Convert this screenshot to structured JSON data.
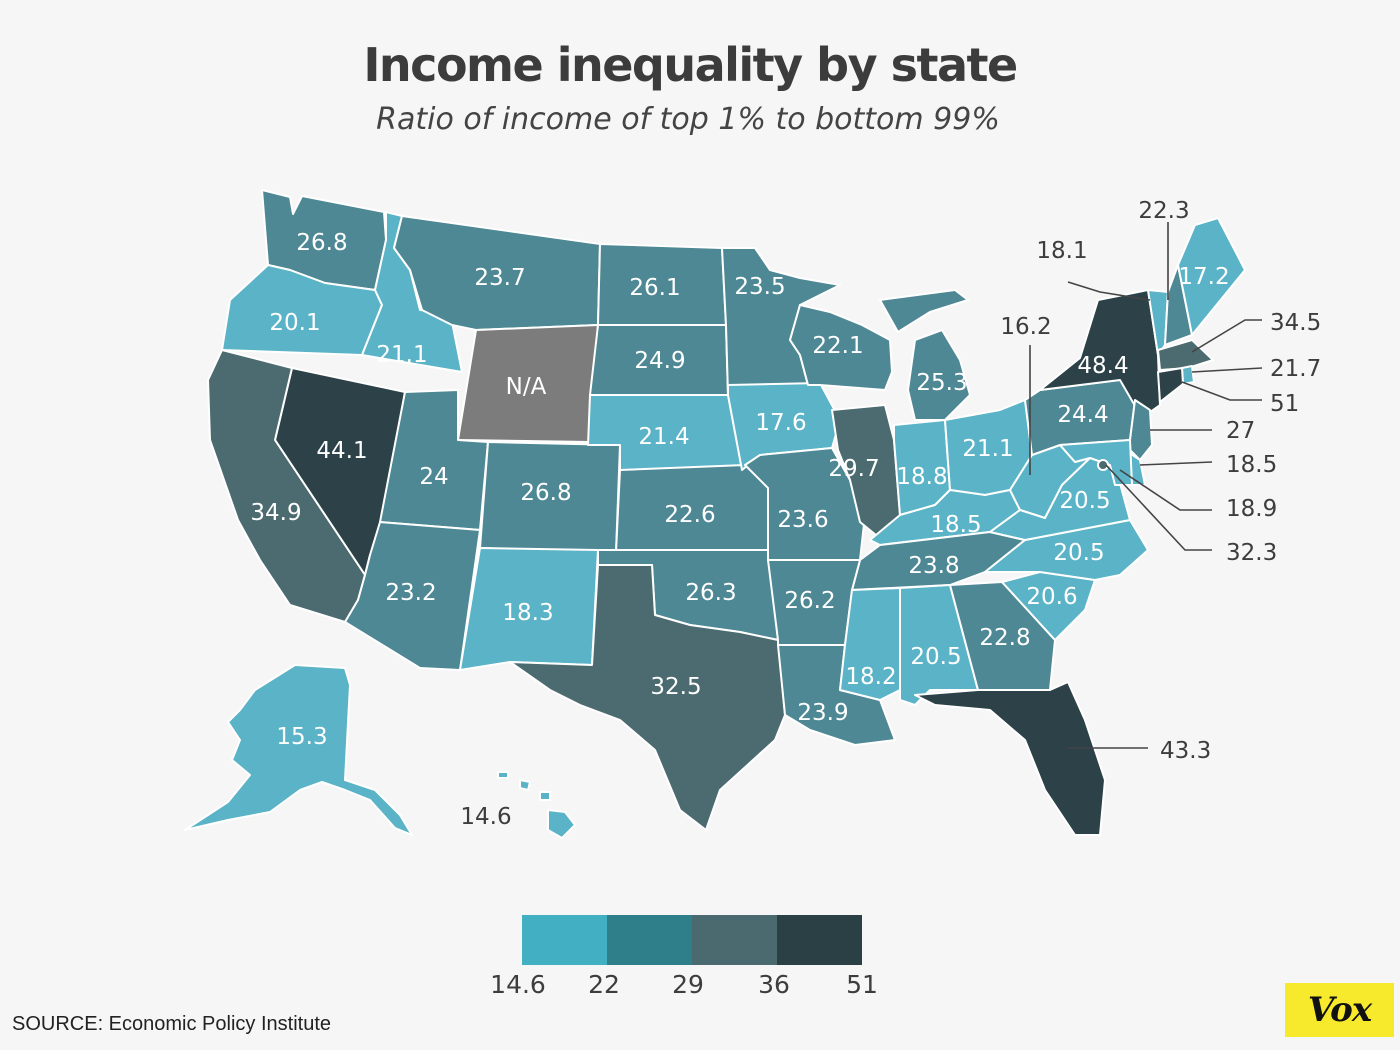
{
  "header": {
    "title": "Income inequality by state",
    "subtitle": "Ratio of income of top 1% to bottom 99%"
  },
  "colors": {
    "bin1": "#5ab3c6",
    "bin2": "#4e8894",
    "bin3": "#4b6b71",
    "bin4": "#2c4248",
    "na": "#7c7c7c",
    "legend1": "#42b0c2",
    "legend2": "#2f7f8a",
    "legend3": "#4a6a70",
    "legend4": "#2b4045"
  },
  "legend": {
    "ticks": [
      "14.6",
      "22",
      "29",
      "36",
      "51"
    ]
  },
  "states": [
    {
      "id": "WA",
      "label": "26.8"
    },
    {
      "id": "OR",
      "label": "20.1"
    },
    {
      "id": "ID",
      "label": "21.1"
    },
    {
      "id": "MT",
      "label": "23.7"
    },
    {
      "id": "WY",
      "label": "N/A"
    },
    {
      "id": "ND",
      "label": "26.1"
    },
    {
      "id": "SD",
      "label": "24.9"
    },
    {
      "id": "MN",
      "label": "23.5"
    },
    {
      "id": "WI",
      "label": "22.1"
    },
    {
      "id": "MI",
      "label": "25.3"
    },
    {
      "id": "NV",
      "label": "44.1"
    },
    {
      "id": "CA",
      "label": "34.9"
    },
    {
      "id": "UT",
      "label": "24"
    },
    {
      "id": "CO",
      "label": "26.8"
    },
    {
      "id": "NE",
      "label": "21.4"
    },
    {
      "id": "IA",
      "label": "17.6"
    },
    {
      "id": "IL",
      "label": "29.7"
    },
    {
      "id": "IN",
      "label": "18.8"
    },
    {
      "id": "OH",
      "label": "21.1"
    },
    {
      "id": "PA",
      "label": "24.4"
    },
    {
      "id": "NY",
      "label": "48.4"
    },
    {
      "id": "KS",
      "label": "22.6"
    },
    {
      "id": "MO",
      "label": "23.6"
    },
    {
      "id": "KY",
      "label": "18.5"
    },
    {
      "id": "WV",
      "label": "16.2"
    },
    {
      "id": "VA",
      "label": "20.5"
    },
    {
      "id": "AZ",
      "label": "23.2"
    },
    {
      "id": "NM",
      "label": "18.3"
    },
    {
      "id": "OK",
      "label": "26.3"
    },
    {
      "id": "AR",
      "label": "26.2"
    },
    {
      "id": "TN",
      "label": "23.8"
    },
    {
      "id": "NC",
      "label": "20.5"
    },
    {
      "id": "SC",
      "label": "20.6"
    },
    {
      "id": "TX",
      "label": "32.5"
    },
    {
      "id": "LA",
      "label": "23.9"
    },
    {
      "id": "MS",
      "label": "18.2"
    },
    {
      "id": "AL",
      "label": "20.5"
    },
    {
      "id": "GA",
      "label": "22.8"
    },
    {
      "id": "FL",
      "label": "43.3"
    },
    {
      "id": "AK",
      "label": "15.3"
    },
    {
      "id": "HI",
      "label": "14.6"
    },
    {
      "id": "ME",
      "label": "17.2"
    },
    {
      "id": "VT",
      "label": "18.1"
    },
    {
      "id": "NH",
      "label": "22.3"
    },
    {
      "id": "MA",
      "label": "34.5"
    },
    {
      "id": "RI",
      "label": "21.7"
    },
    {
      "id": "CT",
      "label": "51"
    },
    {
      "id": "NJ",
      "label": "27"
    },
    {
      "id": "DE",
      "label": "18.5"
    },
    {
      "id": "MD",
      "label": "18.9"
    },
    {
      "id": "DC",
      "label": "32.3"
    }
  ],
  "footer": {
    "source": "SOURCE: Economic Policy Institute",
    "logo": "Vox"
  }
}
